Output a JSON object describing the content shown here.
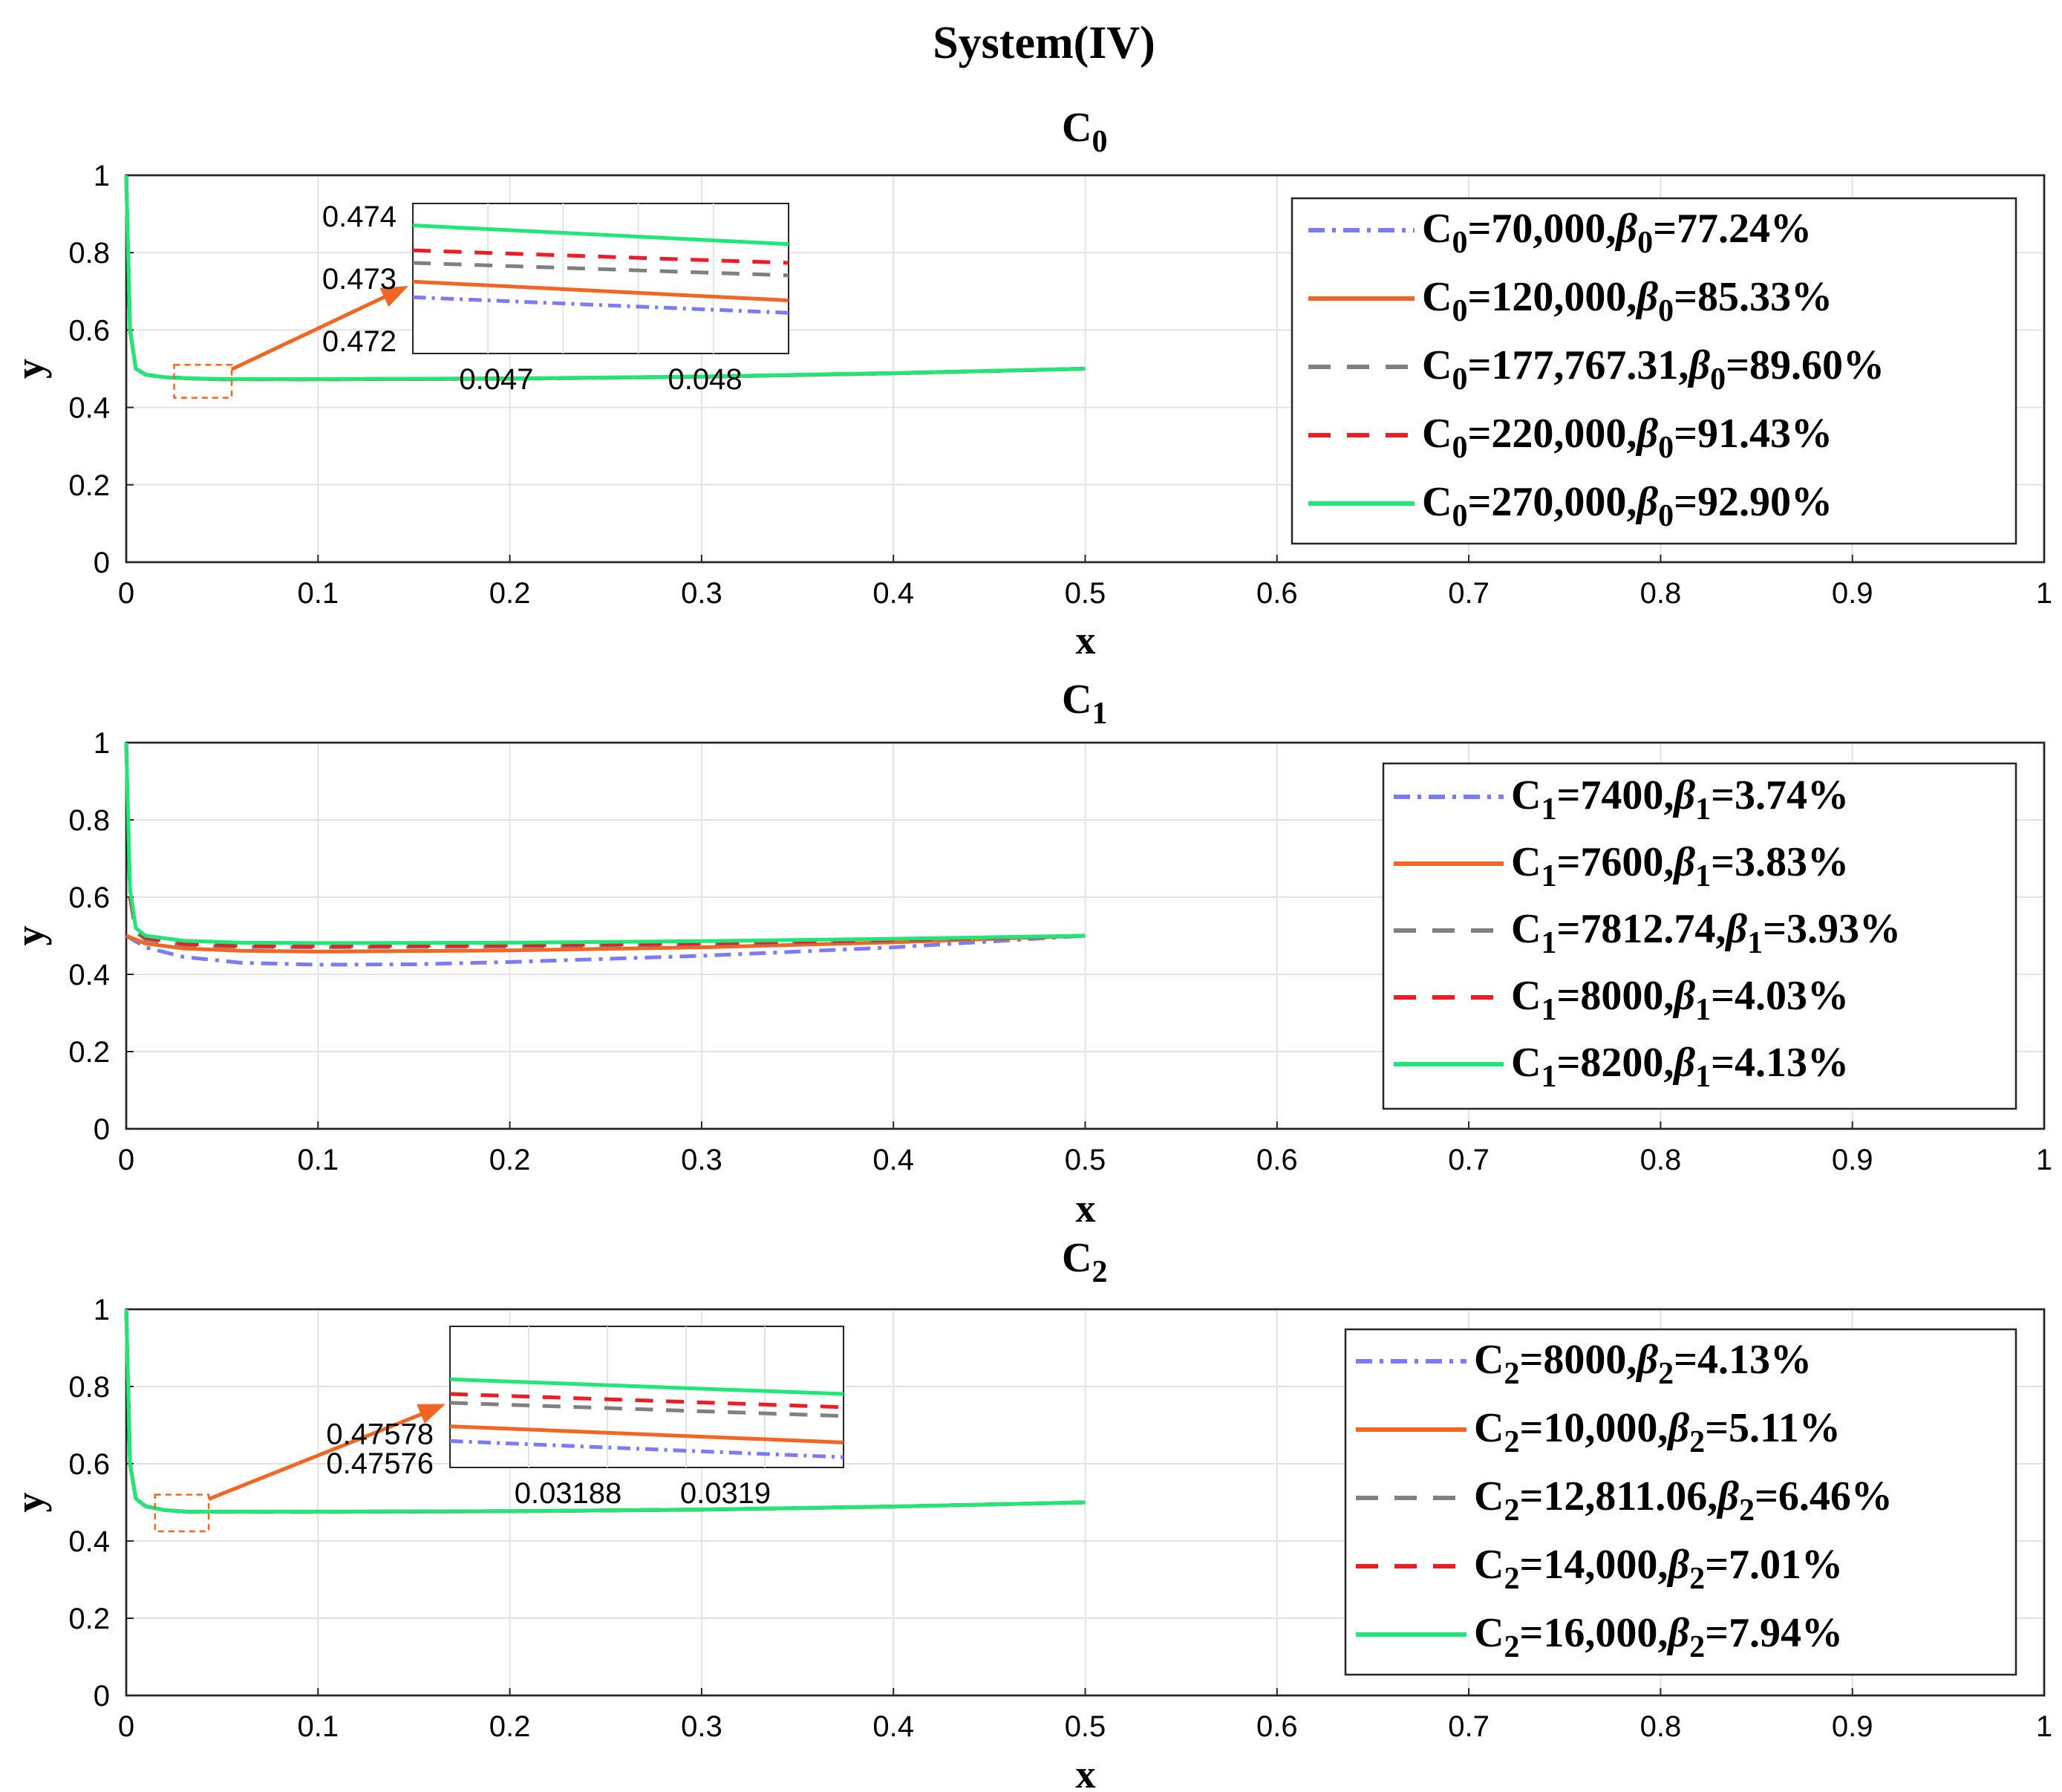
{
  "figure_title": "System(IV)",
  "colors": {
    "blue": "#7B7BF7",
    "orange": "#F26522",
    "gray": "#808080",
    "red": "#EE1C25",
    "green": "#1EE878"
  },
  "chart_data": [
    {
      "type": "line",
      "title_base": "C",
      "title_sub": "0",
      "xlabel": "x",
      "ylabel": "y",
      "xlim": [
        0,
        1
      ],
      "ylim": [
        0,
        1
      ],
      "xticks": [
        "0",
        "0.1",
        "0.2",
        "0.3",
        "0.4",
        "0.5",
        "0.6",
        "0.7",
        "0.8",
        "0.9",
        "1"
      ],
      "yticks": [
        "0",
        "0.2",
        "0.4",
        "0.6",
        "0.8",
        "1"
      ],
      "series": [
        {
          "c_base": "C",
          "c_sub": "0",
          "c_val": "=70,000,",
          "b_sub": "0",
          "b_val": "=77.24%",
          "color": "#7B7BF7",
          "style": "dashdot",
          "points": [
            [
              0,
              1
            ],
            [
              0.002,
              0.6
            ],
            [
              0.005,
              0.5
            ],
            [
              0.01,
              0.485
            ],
            [
              0.02,
              0.478
            ],
            [
              0.035,
              0.4745
            ],
            [
              0.047,
              0.47265
            ],
            [
              0.1,
              0.4725
            ],
            [
              0.2,
              0.474
            ],
            [
              0.3,
              0.479
            ],
            [
              0.4,
              0.488
            ],
            [
              0.5,
              0.5
            ]
          ]
        },
        {
          "c_base": "C",
          "c_sub": "0",
          "c_val": "=120,000,",
          "b_sub": "0",
          "b_val": "=85.33%",
          "color": "#F26522",
          "style": "solid",
          "points": [
            [
              0,
              1
            ],
            [
              0.002,
              0.6
            ],
            [
              0.005,
              0.5
            ],
            [
              0.01,
              0.485
            ],
            [
              0.02,
              0.478
            ],
            [
              0.035,
              0.4746
            ],
            [
              0.047,
              0.47285
            ],
            [
              0.1,
              0.4727
            ],
            [
              0.2,
              0.4742
            ],
            [
              0.3,
              0.4792
            ],
            [
              0.4,
              0.4882
            ],
            [
              0.5,
              0.5
            ]
          ]
        },
        {
          "c_base": "C",
          "c_sub": "0",
          "c_val": "=177,767.31,",
          "b_sub": "0",
          "b_val": "=89.60%",
          "color": "#808080",
          "style": "dashed",
          "points": [
            [
              0,
              1
            ],
            [
              0.002,
              0.6
            ],
            [
              0.005,
              0.5
            ],
            [
              0.01,
              0.485
            ],
            [
              0.02,
              0.478
            ],
            [
              0.035,
              0.4747
            ],
            [
              0.047,
              0.47315
            ],
            [
              0.1,
              0.4729
            ],
            [
              0.2,
              0.4744
            ],
            [
              0.3,
              0.4794
            ],
            [
              0.4,
              0.4884
            ],
            [
              0.5,
              0.5
            ]
          ]
        },
        {
          "c_base": "C",
          "c_sub": "0",
          "c_val": "=220,000,",
          "b_sub": "0",
          "b_val": "=91.43%",
          "color": "#EE1C25",
          "style": "dashed",
          "points": [
            [
              0,
              1
            ],
            [
              0.002,
              0.6
            ],
            [
              0.005,
              0.5
            ],
            [
              0.01,
              0.485
            ],
            [
              0.02,
              0.478
            ],
            [
              0.035,
              0.4748
            ],
            [
              0.047,
              0.47335
            ],
            [
              0.1,
              0.4731
            ],
            [
              0.2,
              0.4746
            ],
            [
              0.3,
              0.4796
            ],
            [
              0.4,
              0.4886
            ],
            [
              0.5,
              0.5
            ]
          ]
        },
        {
          "c_base": "C",
          "c_sub": "0",
          "c_val": "=270,000,",
          "b_sub": "0",
          "b_val": "=92.90%",
          "color": "#1EE878",
          "style": "solid",
          "points": [
            [
              0,
              1
            ],
            [
              0.002,
              0.6
            ],
            [
              0.005,
              0.5
            ],
            [
              0.01,
              0.485
            ],
            [
              0.02,
              0.478
            ],
            [
              0.035,
              0.475
            ],
            [
              0.047,
              0.47365
            ],
            [
              0.1,
              0.4733
            ],
            [
              0.2,
              0.4748
            ],
            [
              0.3,
              0.4798
            ],
            [
              0.4,
              0.4888
            ],
            [
              0.5,
              0.5
            ]
          ]
        }
      ],
      "inset": {
        "xlim": [
          0.0466,
          0.0484
        ],
        "ylim": [
          0.4718,
          0.4742
        ],
        "xticks": [
          "0.047",
          "0.048"
        ],
        "yticks": [
          "0.472",
          "0.473",
          "0.474"
        ],
        "zoom_x": [
          0.025,
          0.055
        ],
        "zoom_y": [
          0.425,
          0.51
        ],
        "series_endpoints": [
          {
            "color": "#7B7BF7",
            "style": "dashdot",
            "y0": 0.4727,
            "y1": 0.47245
          },
          {
            "color": "#F26522",
            "style": "solid",
            "y0": 0.47295,
            "y1": 0.47265
          },
          {
            "color": "#808080",
            "style": "dashed",
            "y0": 0.47325,
            "y1": 0.47305
          },
          {
            "color": "#EE1C25",
            "style": "dashed",
            "y0": 0.47345,
            "y1": 0.47325
          },
          {
            "color": "#1EE878",
            "style": "solid",
            "y0": 0.47385,
            "y1": 0.47355
          }
        ]
      }
    },
    {
      "type": "line",
      "title_base": "C",
      "title_sub": "1",
      "xlabel": "x",
      "ylabel": "y",
      "xlim": [
        0,
        1
      ],
      "ylim": [
        0,
        1
      ],
      "xticks": [
        "0",
        "0.1",
        "0.2",
        "0.3",
        "0.4",
        "0.5",
        "0.6",
        "0.7",
        "0.8",
        "0.9",
        "1"
      ],
      "yticks": [
        "0",
        "0.2",
        "0.4",
        "0.6",
        "0.8",
        "1"
      ],
      "series": [
        {
          "c_base": "C",
          "c_sub": "1",
          "c_val": "=7400,",
          "b_sub": "1",
          "b_val": "=3.74%",
          "color": "#7B7BF7",
          "style": "dashdot",
          "points": [
            [
              0,
              0.5
            ],
            [
              0.01,
              0.47
            ],
            [
              0.03,
              0.445
            ],
            [
              0.06,
              0.43
            ],
            [
              0.1,
              0.425
            ],
            [
              0.15,
              0.426
            ],
            [
              0.2,
              0.432
            ],
            [
              0.3,
              0.448
            ],
            [
              0.4,
              0.47
            ],
            [
              0.5,
              0.5
            ]
          ]
        },
        {
          "c_base": "C",
          "c_sub": "1",
          "c_val": "=7600,",
          "b_sub": "1",
          "b_val": "=3.83%",
          "color": "#F26522",
          "style": "solid",
          "points": [
            [
              0,
              0.5
            ],
            [
              0.01,
              0.48
            ],
            [
              0.03,
              0.467
            ],
            [
              0.06,
              0.461
            ],
            [
              0.1,
              0.459
            ],
            [
              0.2,
              0.462
            ],
            [
              0.3,
              0.47
            ],
            [
              0.4,
              0.483
            ],
            [
              0.5,
              0.5
            ]
          ]
        },
        {
          "c_base": "C",
          "c_sub": "1",
          "c_val": "=7812.74,",
          "b_sub": "1",
          "b_val": "=3.93%",
          "color": "#808080",
          "style": "dashed",
          "points": [
            [
              0,
              1
            ],
            [
              0.002,
              0.6
            ],
            [
              0.005,
              0.51
            ],
            [
              0.01,
              0.49
            ],
            [
              0.03,
              0.476
            ],
            [
              0.06,
              0.471
            ],
            [
              0.1,
              0.47
            ],
            [
              0.2,
              0.472
            ],
            [
              0.3,
              0.477
            ],
            [
              0.4,
              0.487
            ],
            [
              0.5,
              0.5
            ]
          ]
        },
        {
          "c_base": "C",
          "c_sub": "1",
          "c_val": "=8000,",
          "b_sub": "1",
          "b_val": "=4.03%",
          "color": "#EE1C25",
          "style": "dashed",
          "points": [
            [
              0,
              1
            ],
            [
              0.002,
              0.6
            ],
            [
              0.005,
              0.515
            ],
            [
              0.01,
              0.495
            ],
            [
              0.03,
              0.479
            ],
            [
              0.06,
              0.474
            ],
            [
              0.1,
              0.473
            ],
            [
              0.2,
              0.475
            ],
            [
              0.3,
              0.48
            ],
            [
              0.4,
              0.489
            ],
            [
              0.5,
              0.5
            ]
          ]
        },
        {
          "c_base": "C",
          "c_sub": "1",
          "c_val": "=8200,",
          "b_sub": "1",
          "b_val": "=4.13%",
          "color": "#1EE878",
          "style": "solid",
          "points": [
            [
              0,
              1
            ],
            [
              0.002,
              0.62
            ],
            [
              0.005,
              0.52
            ],
            [
              0.01,
              0.5
            ],
            [
              0.03,
              0.487
            ],
            [
              0.06,
              0.482
            ],
            [
              0.1,
              0.481
            ],
            [
              0.2,
              0.482
            ],
            [
              0.3,
              0.486
            ],
            [
              0.4,
              0.492
            ],
            [
              0.5,
              0.5
            ]
          ]
        }
      ]
    },
    {
      "type": "line",
      "title_base": "C",
      "title_sub": "2",
      "xlabel": "x",
      "ylabel": "y",
      "xlim": [
        0,
        1
      ],
      "ylim": [
        0,
        1
      ],
      "xticks": [
        "0",
        "0.1",
        "0.2",
        "0.3",
        "0.4",
        "0.5",
        "0.6",
        "0.7",
        "0.8",
        "0.9",
        "1"
      ],
      "yticks": [
        "0",
        "0.2",
        "0.4",
        "0.6",
        "0.8",
        "1"
      ],
      "series": [
        {
          "c_base": "C",
          "c_sub": "2",
          "c_val": "=8000,",
          "b_sub": "2",
          "b_val": "=4.13%",
          "color": "#7B7BF7",
          "style": "dashdot",
          "points": [
            [
              0,
              1
            ],
            [
              0.002,
              0.6
            ],
            [
              0.005,
              0.51
            ],
            [
              0.01,
              0.49
            ],
            [
              0.02,
              0.48
            ],
            [
              0.032,
              0.4757
            ],
            [
              0.1,
              0.4755
            ],
            [
              0.2,
              0.477
            ],
            [
              0.3,
              0.481
            ],
            [
              0.4,
              0.489
            ],
            [
              0.5,
              0.5
            ]
          ]
        },
        {
          "c_base": "C",
          "c_sub": "2",
          "c_val": "=10,000,",
          "b_sub": "2",
          "b_val": "=5.11%",
          "color": "#F26522",
          "style": "solid",
          "points": [
            [
              0,
              1
            ],
            [
              0.002,
              0.6
            ],
            [
              0.005,
              0.51
            ],
            [
              0.01,
              0.49
            ],
            [
              0.02,
              0.48
            ],
            [
              0.032,
              0.47577
            ],
            [
              0.1,
              0.4756
            ],
            [
              0.2,
              0.4771
            ],
            [
              0.3,
              0.4811
            ],
            [
              0.4,
              0.4891
            ],
            [
              0.5,
              0.5
            ]
          ]
        },
        {
          "c_base": "C",
          "c_sub": "2",
          "c_val": "=12,811.06,",
          "b_sub": "2",
          "b_val": "=6.46%",
          "color": "#808080",
          "style": "dashed",
          "points": [
            [
              0,
              1
            ],
            [
              0.002,
              0.6
            ],
            [
              0.005,
              0.51
            ],
            [
              0.01,
              0.49
            ],
            [
              0.02,
              0.48
            ],
            [
              0.032,
              0.47579
            ],
            [
              0.1,
              0.4757
            ],
            [
              0.2,
              0.4772
            ],
            [
              0.3,
              0.4812
            ],
            [
              0.4,
              0.4892
            ],
            [
              0.5,
              0.5
            ]
          ]
        },
        {
          "c_base": "C",
          "c_sub": "2",
          "c_val": "=14,000,",
          "b_sub": "2",
          "b_val": "=7.01%",
          "color": "#EE1C25",
          "style": "dashed",
          "points": [
            [
              0,
              1
            ],
            [
              0.002,
              0.6
            ],
            [
              0.005,
              0.51
            ],
            [
              0.01,
              0.49
            ],
            [
              0.02,
              0.48
            ],
            [
              0.032,
              0.4758
            ],
            [
              0.1,
              0.4758
            ],
            [
              0.2,
              0.4773
            ],
            [
              0.3,
              0.4813
            ],
            [
              0.4,
              0.4893
            ],
            [
              0.5,
              0.5
            ]
          ]
        },
        {
          "c_base": "C",
          "c_sub": "2",
          "c_val": "=16,000,",
          "b_sub": "2",
          "b_val": "=7.94%",
          "color": "#1EE878",
          "style": "solid",
          "points": [
            [
              0,
              1
            ],
            [
              0.002,
              0.6
            ],
            [
              0.005,
              0.51
            ],
            [
              0.01,
              0.49
            ],
            [
              0.02,
              0.48
            ],
            [
              0.032,
              0.47582
            ],
            [
              0.1,
              0.4759
            ],
            [
              0.2,
              0.4774
            ],
            [
              0.3,
              0.4814
            ],
            [
              0.4,
              0.4894
            ],
            [
              0.5,
              0.5
            ]
          ]
        }
      ],
      "inset": {
        "xlim": [
          0.031865,
          0.031915
        ],
        "ylim": [
          0.475757,
          0.475853
        ],
        "xticks": [
          "0.03188",
          "0.0319"
        ],
        "yticks": [
          "0.47576",
          "0.47578"
        ],
        "zoom_x": [
          0.015,
          0.043
        ],
        "zoom_y": [
          0.425,
          0.52
        ],
        "series_endpoints": [
          {
            "color": "#7B7BF7",
            "style": "dashdot",
            "y0": 0.475775,
            "y1": 0.475764
          },
          {
            "color": "#F26522",
            "style": "solid",
            "y0": 0.475785,
            "y1": 0.475774
          },
          {
            "color": "#808080",
            "style": "dashed",
            "y0": 0.475801,
            "y1": 0.475792
          },
          {
            "color": "#EE1C25",
            "style": "dashed",
            "y0": 0.475807,
            "y1": 0.475798
          },
          {
            "color": "#1EE878",
            "style": "solid",
            "y0": 0.475817,
            "y1": 0.475807
          }
        ]
      }
    }
  ]
}
